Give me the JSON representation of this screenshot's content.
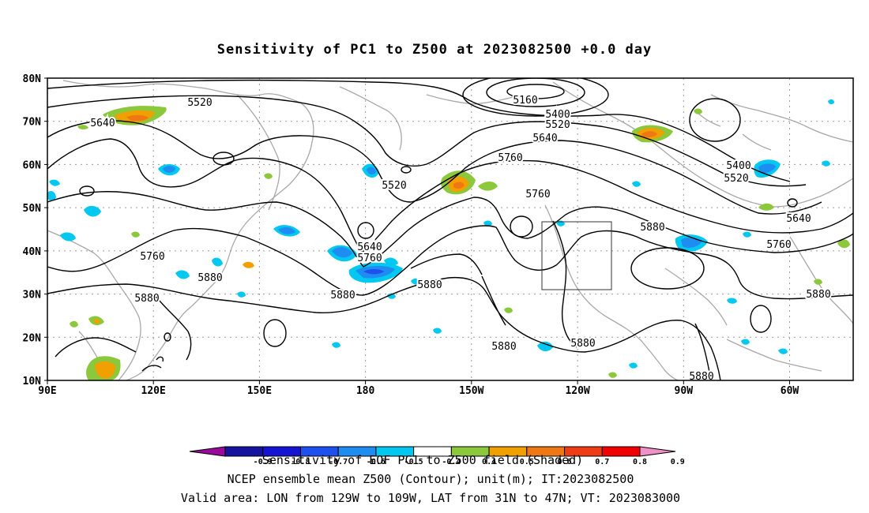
{
  "title": "Sensitivity of PC1 to Z500 at 2023082500 +0.0 day",
  "map": {
    "lat_labels": [
      "80N",
      "70N",
      "60N",
      "50N",
      "40N",
      "30N",
      "20N",
      "10N"
    ],
    "lon_labels": [
      "90E",
      "120E",
      "150E",
      "180",
      "150W",
      "120W",
      "90W",
      "60W"
    ],
    "contour_labels": [
      "5160",
      "5400",
      "5520",
      "5640",
      "5760",
      "5880",
      "5520",
      "5640",
      "5760",
      "5880",
      "5880",
      "5760",
      "5640",
      "5520",
      "5400",
      "5760",
      "5880",
      "5880",
      "5880",
      "5880",
      "5880",
      "5760",
      "5640",
      "5880"
    ],
    "valid_box": {
      "lon": [
        "129W",
        "109W"
      ],
      "lat": [
        "31N",
        "47N"
      ]
    }
  },
  "colorbar": {
    "ticks": [
      "-0.9",
      "-0.8",
      "-0.7",
      "-0.6",
      "-0.5",
      "-0.4",
      "0.4",
      "0.5",
      "0.6",
      "0.7",
      "0.8",
      "0.9"
    ],
    "colors": [
      "#9b0b9b",
      "#14149e",
      "#1414d2",
      "#1e50f0",
      "#1e8cf0",
      "#00c8f0",
      "#ffffff",
      "#8cc83c",
      "#f0a000",
      "#f07814",
      "#f03c14",
      "#f00000",
      "#f090c8"
    ]
  },
  "captions": {
    "line1": "Sensitivity of EOF PC1 to Z500 field (Shaded)",
    "line2": "NCEP ensemble mean Z500 (Contour); unit(m); IT:2023082500",
    "line3": "Valid area: LON from 129W to 109W, LAT from 31N to 47N; VT: 2023083000"
  }
}
